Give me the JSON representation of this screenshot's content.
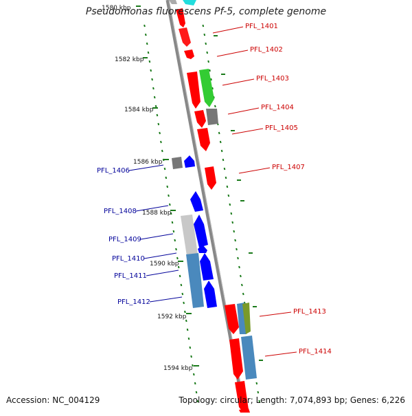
{
  "header": {
    "title": "Pseudomonas fluorescens Pf-5, complete genome"
  },
  "footer": {
    "accession": "Accession: NC_004129",
    "topology": "Topology: circular; Length: 7,074,893 bp; Genes: 6,226"
  },
  "colors": {
    "forward_cds": "#ff0000",
    "reverse_cds": "#0000ff",
    "forward_feature": "#33cc33",
    "feature_gray": "#777777",
    "forward_light_gray": "#c8c8c8",
    "reverse_light_gray": "#bdbdbd",
    "reverse_steel": "#4a89bd",
    "olive_feature": "#7a9a2a",
    "forward_label": "#cc0000",
    "reverse_label": "#000099",
    "tick_green": "#1a7a1a",
    "backbone": "#888888"
  },
  "tick_labels": [
    {
      "text": "1580 kbp"
    },
    {
      "text": "1582 kbp"
    },
    {
      "text": "1584 kbp"
    },
    {
      "text": "1586 kbp"
    },
    {
      "text": "1588 kbp"
    },
    {
      "text": "1590 kbp"
    },
    {
      "text": "1592 kbp"
    },
    {
      "text": "1594 kbp"
    }
  ],
  "gene_labels": [
    {
      "text": "PFL_1401",
      "strand": "forward"
    },
    {
      "text": "PFL_1402",
      "strand": "forward"
    },
    {
      "text": "PFL_1403",
      "strand": "forward"
    },
    {
      "text": "PFL_1404",
      "strand": "forward"
    },
    {
      "text": "PFL_1405",
      "strand": "forward"
    },
    {
      "text": "PFL_1407",
      "strand": "forward"
    },
    {
      "text": "PFL_1413",
      "strand": "forward"
    },
    {
      "text": "PFL_1414",
      "strand": "forward"
    },
    {
      "text": "PFL_1406",
      "strand": "reverse"
    },
    {
      "text": "PFL_1408",
      "strand": "reverse"
    },
    {
      "text": "PFL_1409",
      "strand": "reverse"
    },
    {
      "text": "PFL_1410",
      "strand": "reverse"
    },
    {
      "text": "PFL_1411",
      "strand": "reverse"
    },
    {
      "text": "PFL_1412",
      "strand": "reverse"
    }
  ]
}
